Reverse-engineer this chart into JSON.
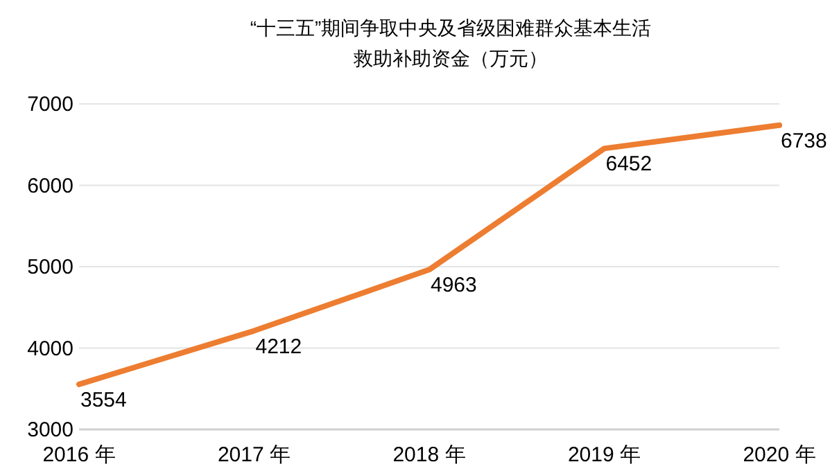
{
  "chart_data": {
    "type": "line",
    "title": "“十三五”期间争取中央及省级困难群众基本生活救助补助资金（万元）",
    "categories": [
      "2016 年",
      "2017 年",
      "2018 年",
      "2019 年",
      "2020 年"
    ],
    "series": [
      {
        "color": "#ed7d31",
        "values": [
          3554,
          4212,
          4963,
          6452,
          6738
        ]
      }
    ],
    "ylim": [
      3000,
      7000
    ],
    "yticks": [
      3000,
      4000,
      5000,
      6000,
      7000
    ],
    "grid": "y",
    "data_labels": true,
    "marker": "none",
    "line_style": "solid"
  }
}
